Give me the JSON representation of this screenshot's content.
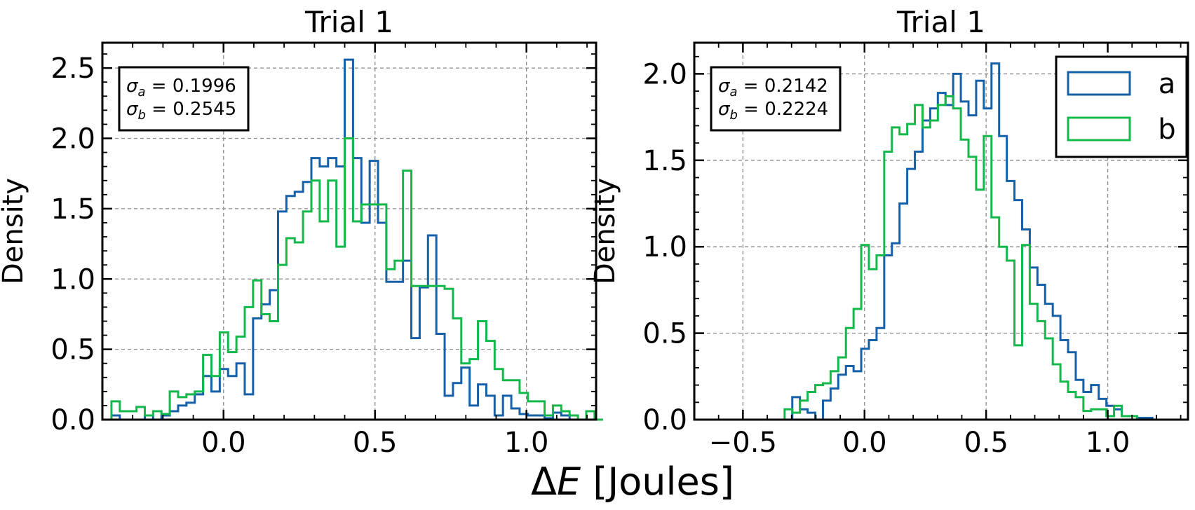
{
  "figure": {
    "xlabel_prefix": "Δ",
    "xlabel_var": "E",
    "xlabel_suffix": " [Joules]"
  },
  "colors": {
    "a": "#1560a8",
    "b": "#13b84a",
    "grid": "#8a8a8a"
  },
  "chart_data": [
    {
      "type": "histogram",
      "title": "Trial 1",
      "ylabel": "Density",
      "xlim": [
        -0.4,
        1.23
      ],
      "ylim": [
        0,
        2.68
      ],
      "xticks": [
        0.0,
        0.5,
        1.0
      ],
      "yticks": [
        0.0,
        0.5,
        1.0,
        1.5,
        2.0,
        2.5
      ],
      "tick_labels_x": [
        "0.0",
        "0.5",
        "1.0"
      ],
      "tick_labels_y": [
        "0.0",
        "0.5",
        "1.0",
        "1.5",
        "2.0",
        "2.5"
      ],
      "grid": true,
      "legend": null,
      "annotation": {
        "sigma_a_value": "0.1996",
        "sigma_b_value": "0.2545",
        "placement": "top-left"
      },
      "series": [
        {
          "name": "a",
          "start": -0.37,
          "width": 0.0275,
          "values": [
            0.03,
            0,
            0,
            0,
            0.03,
            0,
            0.03,
            0.06,
            0.1,
            0.12,
            0.18,
            0.31,
            0.2,
            0.36,
            0.31,
            0.4,
            0.18,
            0.72,
            0.82,
            0.92,
            1.48,
            1.59,
            1.62,
            1.69,
            1.86,
            1.8,
            1.86,
            1.8,
            2.56,
            1.86,
            1.4,
            1.84,
            1.4,
            0.98,
            0.98,
            1.13,
            0.58,
            0.94,
            1.31,
            0.61,
            0.17,
            0.26,
            0.37,
            0.1,
            0.25,
            0.17,
            0.03,
            0.17,
            0.08,
            0.04,
            0.03,
            0.03,
            0.01,
            0.05,
            0.03,
            0,
            0,
            0,
            0
          ]
        },
        {
          "name": "b",
          "start": -0.37,
          "width": 0.0275,
          "values": [
            0.13,
            0.06,
            0.06,
            0.09,
            0.03,
            0.06,
            0.04,
            0.2,
            0.16,
            0.18,
            0.2,
            0.46,
            0.31,
            0.62,
            0.48,
            0.59,
            0.8,
            0.99,
            0.75,
            0.7,
            1.1,
            1.29,
            1.26,
            1.48,
            1.7,
            1.41,
            1.7,
            1.23,
            2.0,
            1.41,
            1.53,
            1.53,
            1.53,
            1.07,
            1.13,
            1.77,
            0.95,
            0.95,
            0.95,
            0.95,
            0.93,
            0.72,
            0.4,
            0.43,
            0.7,
            0.56,
            0.36,
            0.28,
            0.28,
            0.19,
            0.13,
            0.13,
            0.03,
            0.1,
            0.06,
            0.03,
            0,
            0.06,
            0
          ]
        }
      ]
    },
    {
      "type": "histogram",
      "title": "Trial 1",
      "ylabel": "Density",
      "xlim": [
        -0.7,
        1.33
      ],
      "ylim": [
        0,
        2.18
      ],
      "xticks": [
        -0.5,
        0.0,
        0.5,
        1.0
      ],
      "yticks": [
        0.0,
        0.5,
        1.0,
        1.5,
        2.0
      ],
      "tick_labels_x": [
        "−0.5",
        "0.0",
        "0.5",
        "1.0"
      ],
      "tick_labels_y": [
        "0.0",
        "0.5",
        "1.0",
        "1.5",
        "2.0"
      ],
      "grid": true,
      "legend": {
        "placement": "top-right",
        "entries": [
          "a",
          "b"
        ]
      },
      "annotation": {
        "sigma_a_value": "0.2142",
        "sigma_b_value": "0.2224",
        "placement": "top-left"
      },
      "series": [
        {
          "name": "a",
          "start": -0.36,
          "width": 0.0315,
          "values": [
            0,
            0,
            0.13,
            0.06,
            0.04,
            0,
            0.11,
            0.18,
            0.26,
            0.31,
            0.28,
            0.41,
            0.46,
            0.53,
            0.95,
            1.02,
            1.25,
            1.45,
            1.55,
            1.73,
            1.8,
            1.89,
            1.82,
            2.0,
            1.84,
            1.76,
            1.96,
            1.8,
            2.06,
            1.64,
            1.38,
            1.27,
            1.1,
            0.88,
            0.78,
            0.67,
            0.6,
            0.46,
            0.39,
            0.23,
            0.16,
            0.2,
            0.12,
            0.08,
            0.06,
            0.02,
            0.02,
            0.01,
            0.01,
            0,
            0
          ]
        },
        {
          "name": "b",
          "start": -0.36,
          "width": 0.0315,
          "values": [
            0,
            0.06,
            0.04,
            0.11,
            0.16,
            0.2,
            0.21,
            0.28,
            0.36,
            0.53,
            0.64,
            1.01,
            0.87,
            0.95,
            1.55,
            1.69,
            1.65,
            1.71,
            1.82,
            1.69,
            1.73,
            1.82,
            1.87,
            1.8,
            1.62,
            1.52,
            1.33,
            1.64,
            1.17,
            1.0,
            0.92,
            0.43,
            1.01,
            0.67,
            0.57,
            0.47,
            0.32,
            0.22,
            0.16,
            0.13,
            0.05,
            0.06,
            0.06,
            0.02,
            0.08,
            0.02,
            0.02,
            0,
            0,
            0,
            0
          ]
        }
      ]
    }
  ]
}
